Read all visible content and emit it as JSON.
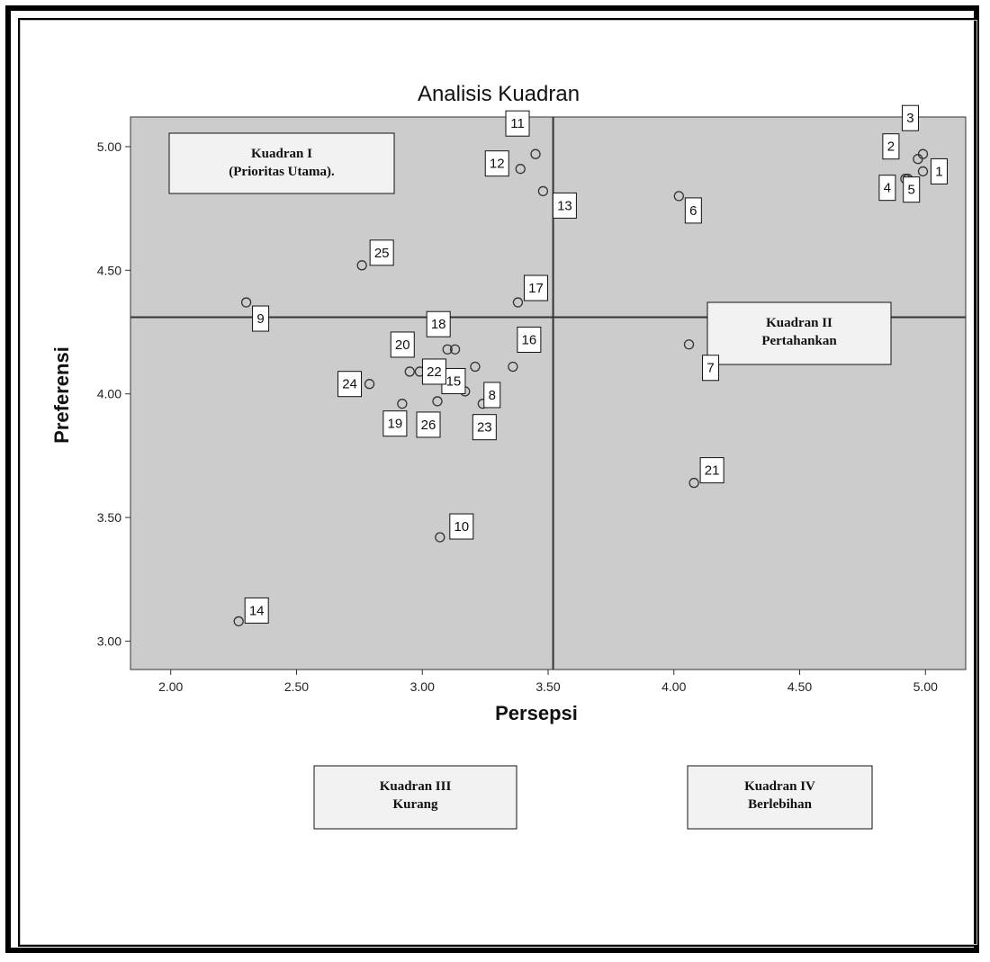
{
  "chart_data": {
    "type": "scatter",
    "title": "Analisis Kuadran",
    "xlabel": "Persepsi",
    "ylabel": "Preferensi",
    "xlim": [
      1.84,
      5.16
    ],
    "ylim": [
      2.885,
      5.12
    ],
    "x_ticks": [
      "2.00",
      "2.50",
      "3.00",
      "3.50",
      "4.00",
      "4.50",
      "5.00"
    ],
    "y_ticks": [
      "3.00",
      "3.50",
      "4.00",
      "4.50",
      "5.00"
    ],
    "grid": false,
    "reference_lines": {
      "x": 3.52,
      "y": 4.31
    },
    "colors": {
      "plot_bg": "#cccccc",
      "marker_stroke": "#333333",
      "line": "#333333",
      "box_bg": "#f2f2f2"
    },
    "quadrants": [
      {
        "lines": [
          "Kuadran I",
          "(Prioritas Utama)."
        ]
      },
      {
        "lines": [
          "Kuadran II",
          "Pertahankan"
        ]
      },
      {
        "lines": [
          "Kuadran III",
          "Kurang"
        ]
      },
      {
        "lines": [
          "Kuadran IV",
          "Berlebihan"
        ]
      }
    ],
    "points": [
      {
        "label": "1",
        "x": 4.99,
        "y": 4.9
      },
      {
        "label": "2",
        "x": 4.97,
        "y": 4.95
      },
      {
        "label": "3",
        "x": 4.99,
        "y": 4.97
      },
      {
        "label": "4",
        "x": 4.92,
        "y": 4.87
      },
      {
        "label": "5",
        "x": 4.93,
        "y": 4.87
      },
      {
        "label": "6",
        "x": 4.02,
        "y": 4.8
      },
      {
        "label": "7",
        "x": 4.06,
        "y": 4.2
      },
      {
        "label": "8",
        "x": 3.17,
        "y": 4.01
      },
      {
        "label": "9",
        "x": 2.3,
        "y": 4.37
      },
      {
        "label": "10",
        "x": 3.07,
        "y": 3.42
      },
      {
        "label": "11",
        "x": 3.45,
        "y": 4.97
      },
      {
        "label": "12",
        "x": 3.39,
        "y": 4.91
      },
      {
        "label": "13",
        "x": 3.48,
        "y": 4.82
      },
      {
        "label": "14",
        "x": 2.27,
        "y": 3.08
      },
      {
        "label": "15",
        "x": 3.21,
        "y": 4.11
      },
      {
        "label": "16",
        "x": 3.36,
        "y": 4.11
      },
      {
        "label": "17",
        "x": 3.38,
        "y": 4.37
      },
      {
        "label": "18",
        "x": 3.1,
        "y": 4.18
      },
      {
        "label": "19",
        "x": 2.92,
        "y": 3.96
      },
      {
        "label": "20",
        "x": 2.95,
        "y": 4.09
      },
      {
        "label": "21",
        "x": 4.08,
        "y": 3.64
      },
      {
        "label": "22",
        "x": 2.99,
        "y": 4.09
      },
      {
        "label": "23",
        "x": 3.24,
        "y": 3.96
      },
      {
        "label": "24",
        "x": 2.79,
        "y": 4.04
      },
      {
        "label": "25",
        "x": 2.76,
        "y": 4.52
      },
      {
        "label": "26",
        "x": 3.06,
        "y": 3.97
      },
      {
        "label": "",
        "x": 3.13,
        "y": 4.18
      }
    ]
  }
}
